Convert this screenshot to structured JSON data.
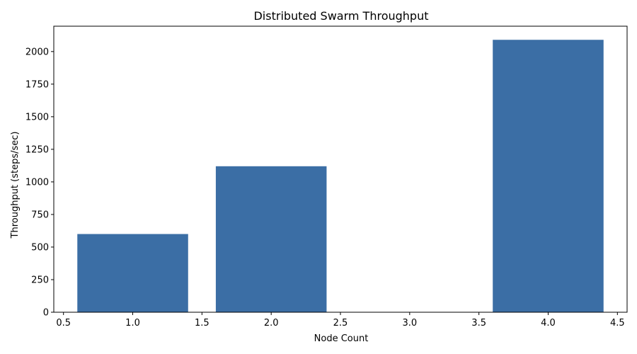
{
  "chart_data": {
    "type": "bar",
    "title": "Distributed Swarm Throughput",
    "xlabel": "Node Count",
    "ylabel": "Throughput (steps/sec)",
    "x": [
      1,
      2,
      4
    ],
    "values": [
      600,
      1120,
      2090
    ],
    "bar_width": 0.8,
    "xlim": [
      0.43,
      4.57
    ],
    "ylim": [
      0,
      2194.5
    ],
    "xticks": [
      0.5,
      1.0,
      1.5,
      2.0,
      2.5,
      3.0,
      3.5,
      4.0,
      4.5
    ],
    "xtick_labels": [
      "0.5",
      "1.0",
      "1.5",
      "2.0",
      "2.5",
      "3.0",
      "3.5",
      "4.0",
      "4.5"
    ],
    "yticks": [
      0,
      250,
      500,
      750,
      1000,
      1250,
      1500,
      1750,
      2000
    ],
    "ytick_labels": [
      "0",
      "250",
      "500",
      "750",
      "1000",
      "1250",
      "1500",
      "1750",
      "2000"
    ],
    "bar_color": "#3b6ea5",
    "grid": false,
    "legend": "none"
  }
}
